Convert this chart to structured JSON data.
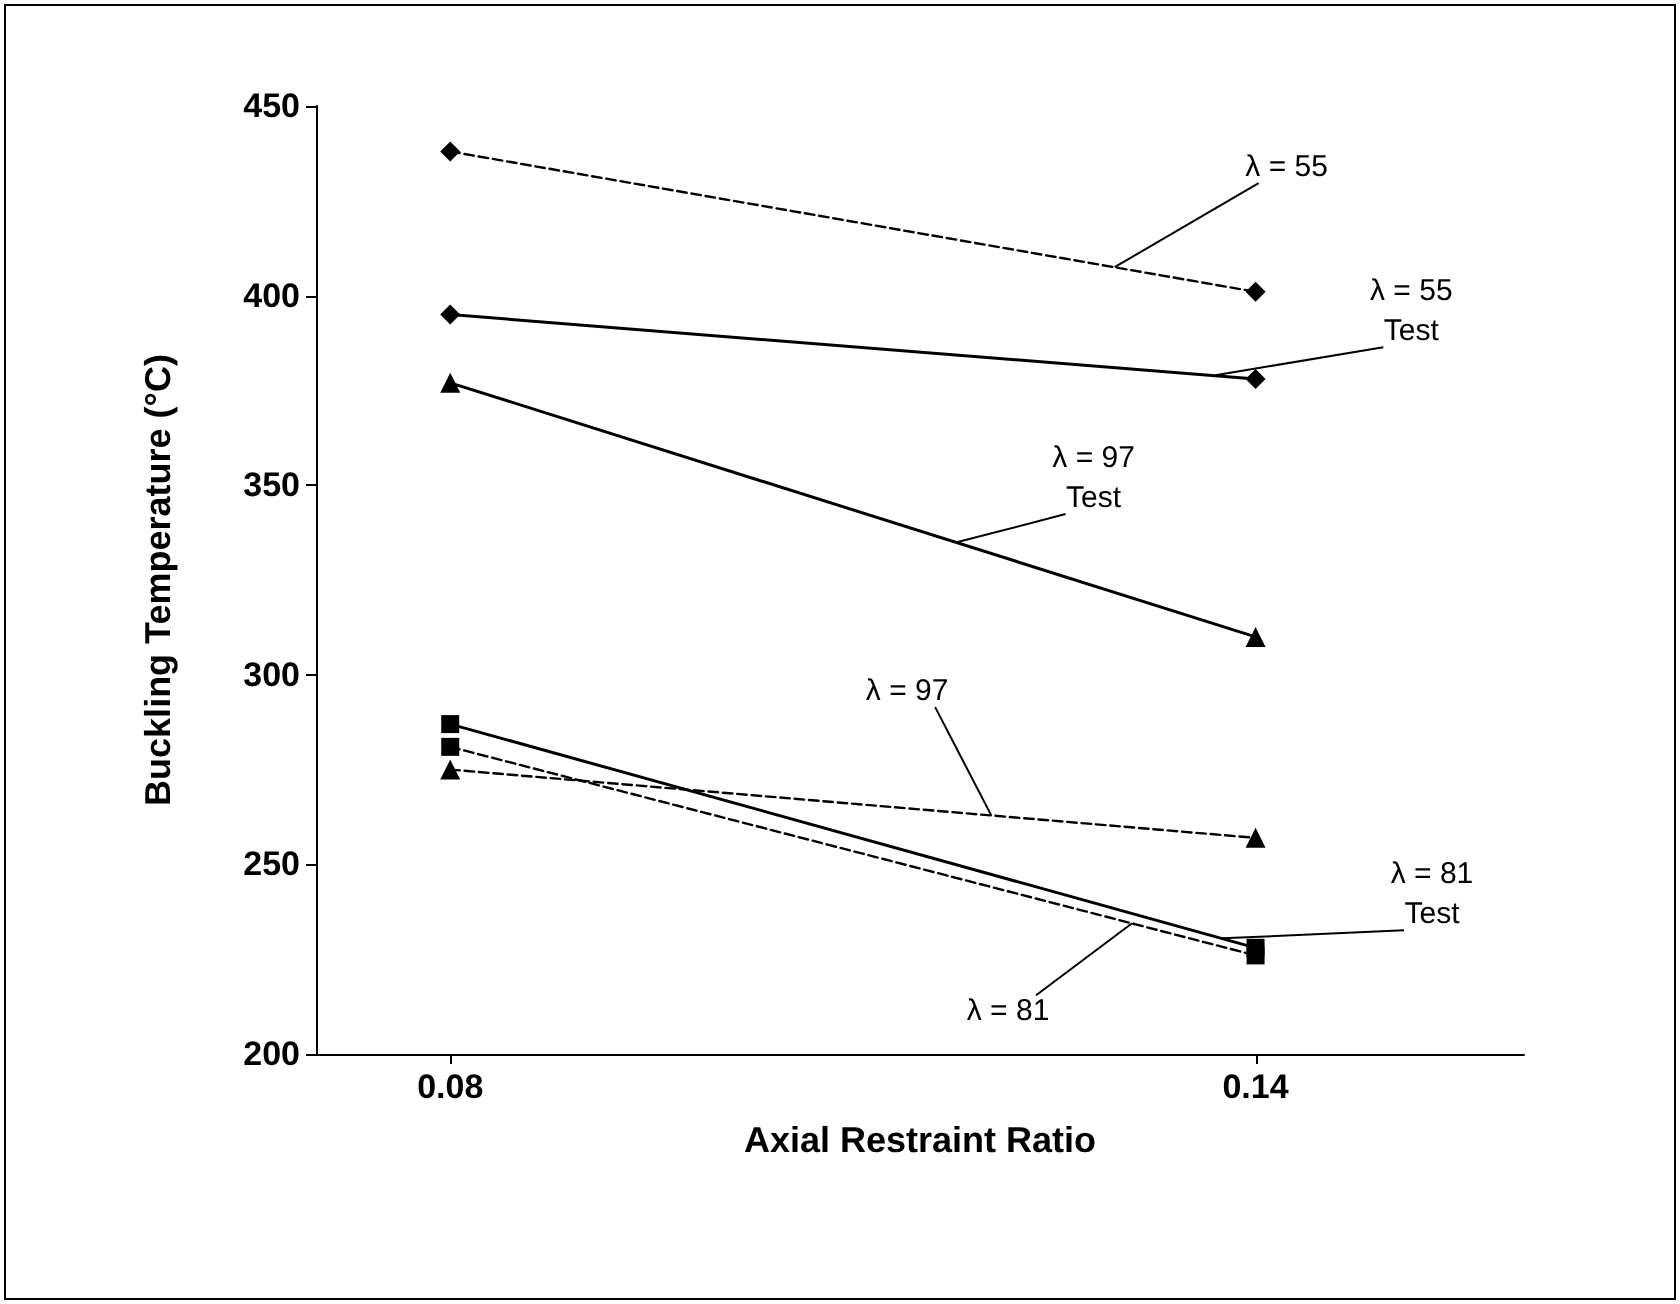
{
  "chart_data": {
    "type": "line",
    "xlabel": "Axial Restraint Ratio",
    "ylabel": "Buckling Temperature (°C)",
    "x": [
      0.08,
      0.14
    ],
    "xlim": [
      0.07,
      0.16
    ],
    "xticks": [
      0.08,
      0.14
    ],
    "ylim": [
      200,
      450
    ],
    "yticks": [
      200,
      250,
      300,
      350,
      400,
      450
    ],
    "grid": false,
    "series": [
      {
        "color": "#000000",
        "values": [
          438,
          401
        ],
        "marker": "diamond",
        "line_style": "dashed"
      },
      {
        "color": "#000000",
        "values": [
          395,
          378
        ],
        "marker": "diamond",
        "line_style": "solid"
      },
      {
        "color": "#000000",
        "values": [
          377,
          310
        ],
        "marker": "triangle",
        "line_style": "solid"
      },
      {
        "color": "#000000",
        "values": [
          275,
          257
        ],
        "marker": "triangle",
        "line_style": "dashed"
      },
      {
        "color": "#000000",
        "values": [
          287,
          228
        ],
        "marker": "square",
        "line_style": "solid"
      },
      {
        "color": "#000000",
        "values": [
          281,
          226
        ],
        "marker": "square",
        "line_style": "dashed"
      }
    ],
    "annotations": [
      {
        "text": "λ = 55",
        "x": 0.1295,
        "y": 407.5
      },
      {
        "text": "λ = 55\nTest",
        "x": 0.137,
        "y": 379
      },
      {
        "text": "λ = 97\nTest",
        "x": 0.1178,
        "y": 335
      },
      {
        "text": "λ = 97",
        "x": 0.1203,
        "y": 263
      },
      {
        "text": "λ = 81\nTest",
        "x": 0.1375,
        "y": 230.5
      },
      {
        "text": "λ = 81",
        "x": 0.1308,
        "y": 234.5
      }
    ]
  }
}
